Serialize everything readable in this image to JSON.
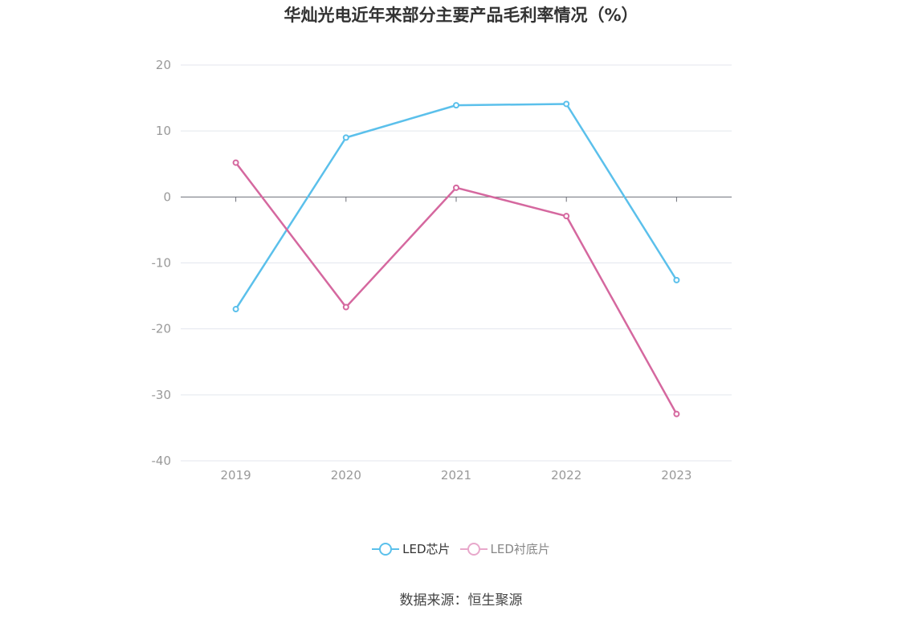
{
  "chart_data": {
    "type": "line",
    "title": "华灿光电近年来部分主要产品毛利率情况（%）",
    "categories": [
      "2019",
      "2020",
      "2021",
      "2022",
      "2023"
    ],
    "series": [
      {
        "name": "LED芯片",
        "values": [
          -17.0,
          9.0,
          13.9,
          14.1,
          -12.6
        ],
        "color": "#5bc0eb"
      },
      {
        "name": "LED衬底片",
        "values": [
          5.2,
          -16.7,
          1.4,
          -2.9,
          -32.9
        ],
        "color": "#d5689f"
      }
    ],
    "ylim": [
      -40,
      20
    ],
    "yticks": [
      20,
      10,
      0,
      -10,
      -20,
      -30,
      -40
    ],
    "grid": true,
    "legend": "bottom-center"
  },
  "source": "数据来源：恒生聚源"
}
